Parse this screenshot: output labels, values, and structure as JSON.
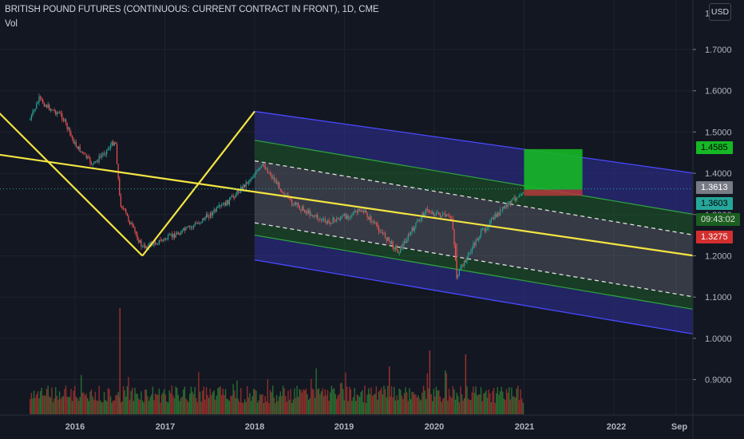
{
  "header": {
    "title": "BRITISH POUND FUTURES (CONTINUOUS: CURRENT CONTRACT IN FRONT), 1D, CME",
    "volume_label": "Vol",
    "currency_button": "USD"
  },
  "price_labels": {
    "target": "1.4585",
    "last_a": "1.3613",
    "last_b": "1.3603",
    "countdown": "09:43:02",
    "stop": "1.3275"
  },
  "colors": {
    "background": "#131722",
    "grid": "#1e222d",
    "up": "#26a69a",
    "down": "#ef5350",
    "yellow_line": "#f5e542",
    "channel_outer": "#2b2ba6",
    "channel_inner": "#1b5e20",
    "target_zone": "#16b825",
    "stop_zone": "#b33a3a"
  },
  "chart_data": {
    "type": "candlestick",
    "instrument": "BRITISH POUND FUTURES (CONTINUOUS: CURRENT CONTRACT IN FRONT)",
    "timeframe": "1D",
    "exchange": "CME",
    "x_ticks": [
      "2016",
      "2017",
      "2018",
      "2019",
      "2020",
      "2021",
      "2022",
      "Sep"
    ],
    "y_ticks": [
      "1.7000",
      "1.6000",
      "1.5000",
      "1.4000",
      "1.3000",
      "1.2000",
      "1.1000",
      "1.0000",
      "0.9000"
    ],
    "y_range": [
      0.83,
      1.81
    ],
    "price_path": [
      {
        "date": "2015.5",
        "price": 1.53
      },
      {
        "date": "2015.6",
        "price": 1.58
      },
      {
        "date": "2015.7",
        "price": 1.56
      },
      {
        "date": "2015.85",
        "price": 1.54
      },
      {
        "date": "2016.0",
        "price": 1.47
      },
      {
        "date": "2016.2",
        "price": 1.42
      },
      {
        "date": "2016.45",
        "price": 1.48
      },
      {
        "date": "2016.5",
        "price": 1.33
      },
      {
        "date": "2016.75",
        "price": 1.22
      },
      {
        "date": "2017.0",
        "price": 1.24
      },
      {
        "date": "2017.3",
        "price": 1.27
      },
      {
        "date": "2017.7",
        "price": 1.33
      },
      {
        "date": "2018.1",
        "price": 1.42
      },
      {
        "date": "2018.4",
        "price": 1.33
      },
      {
        "date": "2018.8",
        "price": 1.28
      },
      {
        "date": "2019.2",
        "price": 1.31
      },
      {
        "date": "2019.6",
        "price": 1.21
      },
      {
        "date": "2019.9",
        "price": 1.31
      },
      {
        "date": "2020.2",
        "price": 1.29
      },
      {
        "date": "2020.25",
        "price": 1.15
      },
      {
        "date": "2020.5",
        "price": 1.25
      },
      {
        "date": "2020.7",
        "price": 1.3
      },
      {
        "date": "2021.0",
        "price": 1.36
      }
    ],
    "drawings": {
      "yellow_lines": [
        {
          "from": [
            "2015.0",
            1.58
          ],
          "to": [
            "2016.75",
            1.2
          ]
        },
        {
          "from": [
            "2016.75",
            1.2
          ],
          "to": [
            "2018.0",
            1.55
          ]
        },
        {
          "from": [
            "2015.0",
            1.45
          ],
          "to": [
            "2022.9",
            1.2
          ]
        }
      ],
      "regression_channel": {
        "start": "2018.0",
        "end": "2022.9",
        "upper_outer": [
          1.55,
          1.4
        ],
        "upper_inner": [
          1.48,
          1.3
        ],
        "upper_dashed": [
          1.43,
          1.25
        ],
        "lower_dashed": [
          1.28,
          1.1
        ],
        "lower_inner": [
          1.25,
          1.07
        ],
        "lower_outer": [
          1.19,
          1.01
        ]
      },
      "position": {
        "entry": 1.3603,
        "target": 1.4585,
        "stop": 1.3275,
        "start": "2021.0",
        "end": "2021.65"
      }
    },
    "volume": {
      "label": "Vol",
      "relative_max": 1.0
    }
  }
}
